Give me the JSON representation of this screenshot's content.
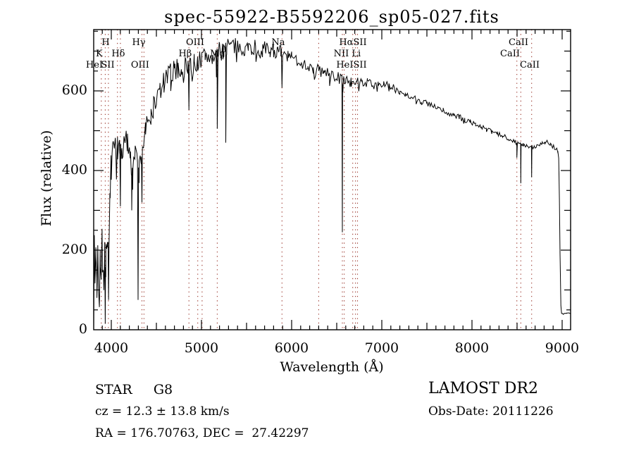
{
  "page": {
    "background": "#ffffff"
  },
  "chart_data": {
    "type": "line",
    "title": "spec-55922-B5592206_sp05-027.fits",
    "xlabel": "Wavelength (Å)",
    "ylabel": "Flux (relative)",
    "xlim": [
      3805,
      9094
    ],
    "ylim": [
      0,
      754
    ],
    "x_ticks": [
      4000,
      5000,
      6000,
      7000,
      8000,
      9000
    ],
    "y_ticks": [
      0,
      200,
      400,
      600
    ],
    "x_minor_step": 100,
    "y_minor_step": 50,
    "grid": false,
    "legend": "none",
    "line_color": "#000000",
    "marker_color": "#9a3328",
    "frame_color": "#000000",
    "spectral_lines": {
      "wavelengths": [
        3889,
        3933,
        3968,
        4068,
        4101,
        4340,
        4363,
        4861,
        4959,
        5007,
        5175,
        5893,
        6300,
        6563,
        6583,
        6678,
        6708,
        6731,
        8498,
        8542,
        8662
      ],
      "labels": [
        {
          "text": "H",
          "wl": 3937,
          "row": 1
        },
        {
          "text": "K",
          "wl": 3867,
          "row": 2
        },
        {
          "text": "HeI",
          "wl": 3813,
          "row": 3
        },
        {
          "text": "SII",
          "wl": 3961,
          "row": 3
        },
        {
          "text": "Hδ",
          "wl": 4078,
          "row": 2
        },
        {
          "text": "Hγ",
          "wl": 4305,
          "row": 1
        },
        {
          "text": "OIII",
          "wl": 4320,
          "row": 3
        },
        {
          "text": "Hβ",
          "wl": 4820,
          "row": 2
        },
        {
          "text": "OIII",
          "wl": 4930,
          "row": 1
        },
        {
          "text": "Mg",
          "wl": 5180,
          "row": 2
        },
        {
          "text": "Na",
          "wl": 5852,
          "row": 1
        },
        {
          "text": "HαSII",
          "wl": 6680,
          "row": 1
        },
        {
          "text": "NII Li",
          "wl": 6617,
          "row": 2
        },
        {
          "text": "HeISII",
          "wl": 6664,
          "row": 3
        },
        {
          "text": "CaII",
          "wl": 8516,
          "row": 1
        },
        {
          "text": "CaII",
          "wl": 8422,
          "row": 2
        },
        {
          "text": "CaII",
          "wl": 8641,
          "row": 3
        }
      ]
    },
    "spectrum": {
      "anchors": [
        [
          3805,
          60
        ],
        [
          3812,
          185
        ],
        [
          3820,
          120
        ],
        [
          3830,
          210
        ],
        [
          3840,
          100
        ],
        [
          3850,
          235
        ],
        [
          3858,
          130
        ],
        [
          3868,
          95
        ],
        [
          3878,
          205
        ],
        [
          3888,
          120
        ],
        [
          3898,
          240
        ],
        [
          3908,
          185
        ],
        [
          3918,
          145
        ],
        [
          3926,
          200
        ],
        [
          3940,
          170
        ],
        [
          3950,
          245
        ],
        [
          3958,
          200
        ],
        [
          3976,
          210
        ],
        [
          3988,
          320
        ],
        [
          4000,
          430
        ],
        [
          4015,
          450
        ],
        [
          4030,
          460
        ],
        [
          4050,
          465
        ],
        [
          4070,
          450
        ],
        [
          4090,
          460
        ],
        [
          4120,
          455
        ],
        [
          4150,
          460
        ],
        [
          4180,
          470
        ],
        [
          4210,
          455
        ],
        [
          4240,
          430
        ],
        [
          4265,
          440
        ],
        [
          4285,
          420
        ],
        [
          4310,
          400
        ],
        [
          4330,
          430
        ],
        [
          4355,
          470
        ],
        [
          4380,
          495
        ],
        [
          4410,
          515
        ],
        [
          4440,
          540
        ],
        [
          4470,
          560
        ],
        [
          4500,
          578
        ],
        [
          4540,
          600
        ],
        [
          4580,
          618
        ],
        [
          4620,
          632
        ],
        [
          4660,
          645
        ],
        [
          4700,
          652
        ],
        [
          4740,
          655
        ],
        [
          4780,
          658
        ],
        [
          4820,
          662
        ],
        [
          4850,
          665
        ],
        [
          4880,
          668
        ],
        [
          4920,
          670
        ],
        [
          4960,
          674
        ],
        [
          5000,
          678
        ],
        [
          5040,
          688
        ],
        [
          5080,
          686
        ],
        [
          5120,
          688
        ],
        [
          5160,
          690
        ],
        [
          5200,
          696
        ],
        [
          5240,
          706
        ],
        [
          5280,
          712
        ],
        [
          5320,
          716
        ],
        [
          5360,
          710
        ],
        [
          5400,
          712
        ],
        [
          5440,
          708
        ],
        [
          5480,
          711
        ],
        [
          5520,
          707
        ],
        [
          5560,
          710
        ],
        [
          5600,
          709
        ],
        [
          5640,
          703
        ],
        [
          5680,
          705
        ],
        [
          5720,
          701
        ],
        [
          5760,
          704
        ],
        [
          5800,
          706
        ],
        [
          5840,
          699
        ],
        [
          5880,
          694
        ],
        [
          5920,
          690
        ],
        [
          5960,
          687
        ],
        [
          6000,
          683
        ],
        [
          6060,
          677
        ],
        [
          6120,
          670
        ],
        [
          6180,
          664
        ],
        [
          6240,
          657
        ],
        [
          6300,
          652
        ],
        [
          6360,
          646
        ],
        [
          6420,
          641
        ],
        [
          6480,
          637
        ],
        [
          6540,
          630
        ],
        [
          6600,
          626
        ],
        [
          6660,
          625
        ],
        [
          6720,
          624
        ],
        [
          6780,
          622
        ],
        [
          6840,
          621
        ],
        [
          6900,
          620
        ],
        [
          6960,
          618
        ],
        [
          7020,
          616
        ],
        [
          7080,
          610
        ],
        [
          7140,
          606
        ],
        [
          7200,
          599
        ],
        [
          7260,
          592
        ],
        [
          7320,
          586
        ],
        [
          7380,
          580
        ],
        [
          7440,
          574
        ],
        [
          7500,
          569
        ],
        [
          7560,
          562
        ],
        [
          7620,
          556
        ],
        [
          7680,
          550
        ],
        [
          7740,
          544
        ],
        [
          7800,
          539
        ],
        [
          7860,
          533
        ],
        [
          7920,
          527
        ],
        [
          7980,
          522
        ],
        [
          8040,
          516
        ],
        [
          8100,
          510
        ],
        [
          8160,
          503
        ],
        [
          8220,
          497
        ],
        [
          8280,
          492
        ],
        [
          8340,
          487
        ],
        [
          8400,
          482
        ],
        [
          8450,
          476
        ],
        [
          8480,
          472
        ],
        [
          8510,
          468
        ],
        [
          8540,
          465
        ],
        [
          8570,
          463
        ],
        [
          8600,
          461
        ],
        [
          8630,
          459
        ],
        [
          8660,
          458
        ],
        [
          8690,
          459
        ],
        [
          8720,
          462
        ],
        [
          8750,
          467
        ],
        [
          8780,
          471
        ],
        [
          8810,
          473
        ],
        [
          8840,
          471
        ],
        [
          8870,
          466
        ],
        [
          8900,
          461
        ],
        [
          8930,
          457
        ],
        [
          8952,
          450
        ],
        [
          8962,
          430
        ],
        [
          8970,
          330
        ],
        [
          8978,
          170
        ],
        [
          8986,
          60
        ],
        [
          8994,
          42
        ],
        [
          9005,
          40
        ],
        [
          9050,
          41
        ],
        [
          9090,
          42
        ]
      ],
      "dips": [
        [
          3933,
          15,
          6
        ],
        [
          3970,
          75,
          6
        ],
        [
          4101,
          310,
          7
        ],
        [
          4227,
          300,
          5
        ],
        [
          4297,
          75,
          6
        ],
        [
          4340,
          320,
          6
        ],
        [
          4861,
          552,
          6
        ],
        [
          5175,
          505,
          9
        ],
        [
          5270,
          470,
          7
        ],
        [
          5893,
          608,
          7
        ],
        [
          6563,
          245,
          5
        ],
        [
          8498,
          432,
          5
        ],
        [
          8542,
          368,
          5
        ],
        [
          8662,
          383,
          5
        ]
      ],
      "noise_regions": [
        [
          3805,
          3990,
          55
        ],
        [
          3990,
          4400,
          38
        ],
        [
          4400,
          4700,
          30
        ],
        [
          4700,
          5300,
          27
        ],
        [
          5300,
          5900,
          22
        ],
        [
          5900,
          6600,
          16
        ],
        [
          6600,
          7200,
          11
        ],
        [
          7200,
          8000,
          8
        ],
        [
          8000,
          8955,
          6
        ],
        [
          8955,
          9094,
          2
        ]
      ],
      "noise_seed": 7,
      "noise_spike_prob": 0.08,
      "noise_spike_gain": 2.2,
      "sample_step": 12
    },
    "annotations": {
      "star_class": "STAR     G8",
      "cz": "cz = 12.3 ± 13.8 km/s",
      "radec": "RA = 176.70763, DEC =  27.42297",
      "survey": "LAMOST DR2",
      "obs_date": "Obs-Date: 20111226"
    }
  }
}
